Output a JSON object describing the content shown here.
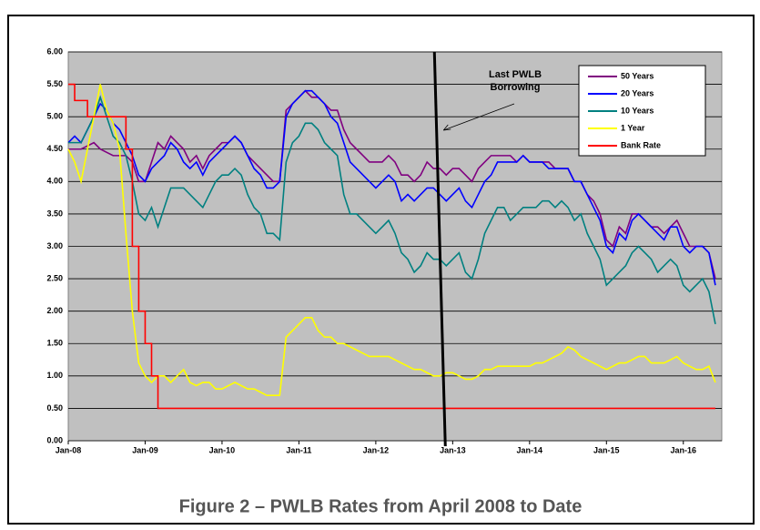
{
  "chart_data": {
    "type": "line",
    "caption": "Figure 2 – PWLB Rates from April 2008 to Date",
    "annotation": {
      "lines": [
        "Last PWLB",
        "Borrowing"
      ],
      "x": "2012-11"
    },
    "x": [
      "2008-01",
      "2008-02",
      "2008-03",
      "2008-04",
      "2008-05",
      "2008-06",
      "2008-07",
      "2008-08",
      "2008-09",
      "2008-10",
      "2008-11",
      "2008-12",
      "2009-01",
      "2009-02",
      "2009-03",
      "2009-04",
      "2009-05",
      "2009-06",
      "2009-07",
      "2009-08",
      "2009-09",
      "2009-10",
      "2009-11",
      "2009-12",
      "2010-01",
      "2010-02",
      "2010-03",
      "2010-04",
      "2010-05",
      "2010-06",
      "2010-07",
      "2010-08",
      "2010-09",
      "2010-10",
      "2010-11",
      "2010-12",
      "2011-01",
      "2011-02",
      "2011-03",
      "2011-04",
      "2011-05",
      "2011-06",
      "2011-07",
      "2011-08",
      "2011-09",
      "2011-10",
      "2011-11",
      "2011-12",
      "2012-01",
      "2012-02",
      "2012-03",
      "2012-04",
      "2012-05",
      "2012-06",
      "2012-07",
      "2012-08",
      "2012-09",
      "2012-10",
      "2012-11",
      "2012-12",
      "2013-01",
      "2013-02",
      "2013-03",
      "2013-04",
      "2013-05",
      "2013-06",
      "2013-07",
      "2013-08",
      "2013-09",
      "2013-10",
      "2013-11",
      "2013-12",
      "2014-01",
      "2014-02",
      "2014-03",
      "2014-04",
      "2014-05",
      "2014-06",
      "2014-07",
      "2014-08",
      "2014-09",
      "2014-10",
      "2014-11",
      "2014-12",
      "2015-01",
      "2015-02",
      "2015-03",
      "2015-04",
      "2015-05",
      "2015-06",
      "2015-07",
      "2015-08",
      "2015-09",
      "2015-10",
      "2015-11",
      "2015-12",
      "2016-01",
      "2016-02",
      "2016-03",
      "2016-04",
      "2016-05",
      "2016-06"
    ],
    "xlim": [
      "2008-01",
      "2016-07"
    ],
    "xticks": [
      {
        "value": "2008-01",
        "label": "Jan-08"
      },
      {
        "value": "2009-01",
        "label": "Jan-09"
      },
      {
        "value": "2010-01",
        "label": "Jan-10"
      },
      {
        "value": "2011-01",
        "label": "Jan-11"
      },
      {
        "value": "2012-01",
        "label": "Jan-12"
      },
      {
        "value": "2013-01",
        "label": "Jan-13"
      },
      {
        "value": "2014-01",
        "label": "Jan-14"
      },
      {
        "value": "2015-01",
        "label": "Jan-15"
      },
      {
        "value": "2016-01",
        "label": "Jan-16"
      }
    ],
    "ylim": [
      0,
      6
    ],
    "yticks": [
      {
        "value": 0,
        "label": "0.00"
      },
      {
        "value": 0.5,
        "label": "0.50"
      },
      {
        "value": 1,
        "label": "1.00"
      },
      {
        "value": 1.5,
        "label": "1.50"
      },
      {
        "value": 2,
        "label": "2.00"
      },
      {
        "value": 2.5,
        "label": "2.50"
      },
      {
        "value": 3,
        "label": "3.00"
      },
      {
        "value": 3.5,
        "label": "3.50"
      },
      {
        "value": 4,
        "label": "4.00"
      },
      {
        "value": 4.5,
        "label": "4.50"
      },
      {
        "value": 5,
        "label": "5.00"
      },
      {
        "value": 5.5,
        "label": "5.50"
      },
      {
        "value": 6,
        "label": "6.00"
      }
    ],
    "grid": true,
    "legend": "upper right",
    "series": [
      {
        "name": "50 Years",
        "color": "#800080",
        "values": [
          4.5,
          4.5,
          4.5,
          4.55,
          4.6,
          4.5,
          4.45,
          4.4,
          4.4,
          4.4,
          4.3,
          4.0,
          4.0,
          4.3,
          4.6,
          4.5,
          4.7,
          4.6,
          4.5,
          4.3,
          4.4,
          4.2,
          4.4,
          4.5,
          4.6,
          4.6,
          4.7,
          4.6,
          4.4,
          4.3,
          4.2,
          4.1,
          4.0,
          4.0,
          5.1,
          5.2,
          5.3,
          5.4,
          5.3,
          5.3,
          5.2,
          5.1,
          5.1,
          4.8,
          4.6,
          4.5,
          4.4,
          4.3,
          4.3,
          4.3,
          4.4,
          4.3,
          4.1,
          4.1,
          4.0,
          4.1,
          4.3,
          4.2,
          4.2,
          4.1,
          4.2,
          4.2,
          4.1,
          4.0,
          4.2,
          4.3,
          4.4,
          4.4,
          4.4,
          4.4,
          4.3,
          4.4,
          4.3,
          4.3,
          4.3,
          4.3,
          4.2,
          4.2,
          4.2,
          4.0,
          4.0,
          3.8,
          3.7,
          3.5,
          3.1,
          3.0,
          3.3,
          3.2,
          3.5,
          3.5,
          3.4,
          3.3,
          3.3,
          3.2,
          3.3,
          3.4,
          3.2,
          3.0,
          3.0,
          3.0,
          2.9,
          2.5
        ]
      },
      {
        "name": "20 Years",
        "color": "#0000ff",
        "values": [
          4.6,
          4.7,
          4.6,
          4.8,
          5.0,
          5.2,
          5.1,
          4.9,
          4.8,
          4.6,
          4.4,
          4.1,
          4.0,
          4.2,
          4.3,
          4.4,
          4.6,
          4.5,
          4.3,
          4.2,
          4.3,
          4.1,
          4.3,
          4.4,
          4.5,
          4.6,
          4.7,
          4.6,
          4.4,
          4.2,
          4.1,
          3.9,
          3.9,
          4.0,
          5.0,
          5.2,
          5.3,
          5.4,
          5.4,
          5.3,
          5.2,
          5.0,
          4.9,
          4.6,
          4.3,
          4.2,
          4.1,
          4.0,
          3.9,
          4.0,
          4.1,
          4.0,
          3.7,
          3.8,
          3.7,
          3.8,
          3.9,
          3.9,
          3.8,
          3.7,
          3.8,
          3.9,
          3.7,
          3.6,
          3.8,
          4.0,
          4.1,
          4.3,
          4.3,
          4.3,
          4.3,
          4.4,
          4.3,
          4.3,
          4.3,
          4.2,
          4.2,
          4.2,
          4.2,
          4.0,
          4.0,
          3.8,
          3.6,
          3.4,
          3.0,
          2.9,
          3.2,
          3.1,
          3.4,
          3.5,
          3.4,
          3.3,
          3.2,
          3.1,
          3.3,
          3.3,
          3.0,
          2.9,
          3.0,
          3.0,
          2.9,
          2.4
        ]
      },
      {
        "name": "10 Years",
        "color": "#008080",
        "values": [
          4.6,
          4.6,
          4.6,
          4.8,
          5.0,
          5.3,
          5.0,
          4.7,
          4.6,
          4.4,
          4.0,
          3.5,
          3.4,
          3.6,
          3.3,
          3.6,
          3.9,
          3.9,
          3.9,
          3.8,
          3.7,
          3.6,
          3.8,
          4.0,
          4.1,
          4.1,
          4.2,
          4.1,
          3.8,
          3.6,
          3.5,
          3.2,
          3.2,
          3.1,
          4.3,
          4.6,
          4.7,
          4.9,
          4.9,
          4.8,
          4.6,
          4.5,
          4.4,
          3.8,
          3.5,
          3.5,
          3.4,
          3.3,
          3.2,
          3.3,
          3.4,
          3.2,
          2.9,
          2.8,
          2.6,
          2.7,
          2.9,
          2.8,
          2.8,
          2.7,
          2.8,
          2.9,
          2.6,
          2.5,
          2.8,
          3.2,
          3.4,
          3.6,
          3.6,
          3.4,
          3.5,
          3.6,
          3.6,
          3.6,
          3.7,
          3.7,
          3.6,
          3.7,
          3.6,
          3.4,
          3.5,
          3.2,
          3.0,
          2.8,
          2.4,
          2.5,
          2.6,
          2.7,
          2.9,
          3.0,
          2.9,
          2.8,
          2.6,
          2.7,
          2.8,
          2.7,
          2.4,
          2.3,
          2.4,
          2.5,
          2.3,
          1.8
        ]
      },
      {
        "name": "1 Year",
        "color": "#ffff00",
        "values": [
          4.5,
          4.3,
          4.0,
          4.5,
          5.0,
          5.5,
          5.1,
          4.9,
          4.5,
          3.2,
          2.0,
          1.2,
          1.0,
          0.9,
          1.0,
          1.0,
          0.9,
          1.0,
          1.1,
          0.9,
          0.85,
          0.9,
          0.9,
          0.8,
          0.8,
          0.85,
          0.9,
          0.85,
          0.8,
          0.8,
          0.75,
          0.7,
          0.7,
          0.7,
          1.6,
          1.7,
          1.8,
          1.9,
          1.9,
          1.7,
          1.6,
          1.6,
          1.5,
          1.5,
          1.45,
          1.4,
          1.35,
          1.3,
          1.3,
          1.3,
          1.3,
          1.25,
          1.2,
          1.15,
          1.1,
          1.1,
          1.05,
          1.0,
          1.0,
          1.05,
          1.05,
          1.0,
          0.95,
          0.95,
          1.0,
          1.1,
          1.1,
          1.15,
          1.15,
          1.15,
          1.15,
          1.15,
          1.15,
          1.2,
          1.2,
          1.25,
          1.3,
          1.35,
          1.45,
          1.4,
          1.3,
          1.25,
          1.2,
          1.15,
          1.1,
          1.15,
          1.2,
          1.2,
          1.25,
          1.3,
          1.3,
          1.2,
          1.2,
          1.2,
          1.25,
          1.3,
          1.2,
          1.15,
          1.1,
          1.1,
          1.15,
          0.9
        ]
      },
      {
        "name": "Bank Rate",
        "color": "#ff0000",
        "step": true,
        "values": [
          5.5,
          5.25,
          5.25,
          5.0,
          5.0,
          5.0,
          5.0,
          5.0,
          5.0,
          4.5,
          3.0,
          2.0,
          1.5,
          1.0,
          0.5,
          0.5,
          0.5,
          0.5,
          0.5,
          0.5,
          0.5,
          0.5,
          0.5,
          0.5,
          0.5,
          0.5,
          0.5,
          0.5,
          0.5,
          0.5,
          0.5,
          0.5,
          0.5,
          0.5,
          0.5,
          0.5,
          0.5,
          0.5,
          0.5,
          0.5,
          0.5,
          0.5,
          0.5,
          0.5,
          0.5,
          0.5,
          0.5,
          0.5,
          0.5,
          0.5,
          0.5,
          0.5,
          0.5,
          0.5,
          0.5,
          0.5,
          0.5,
          0.5,
          0.5,
          0.5,
          0.5,
          0.5,
          0.5,
          0.5,
          0.5,
          0.5,
          0.5,
          0.5,
          0.5,
          0.5,
          0.5,
          0.5,
          0.5,
          0.5,
          0.5,
          0.5,
          0.5,
          0.5,
          0.5,
          0.5,
          0.5,
          0.5,
          0.5,
          0.5,
          0.5,
          0.5,
          0.5,
          0.5,
          0.5,
          0.5,
          0.5,
          0.5,
          0.5,
          0.5,
          0.5,
          0.5,
          0.5,
          0.5,
          0.5,
          0.5,
          0.5,
          0.5
        ]
      }
    ]
  }
}
